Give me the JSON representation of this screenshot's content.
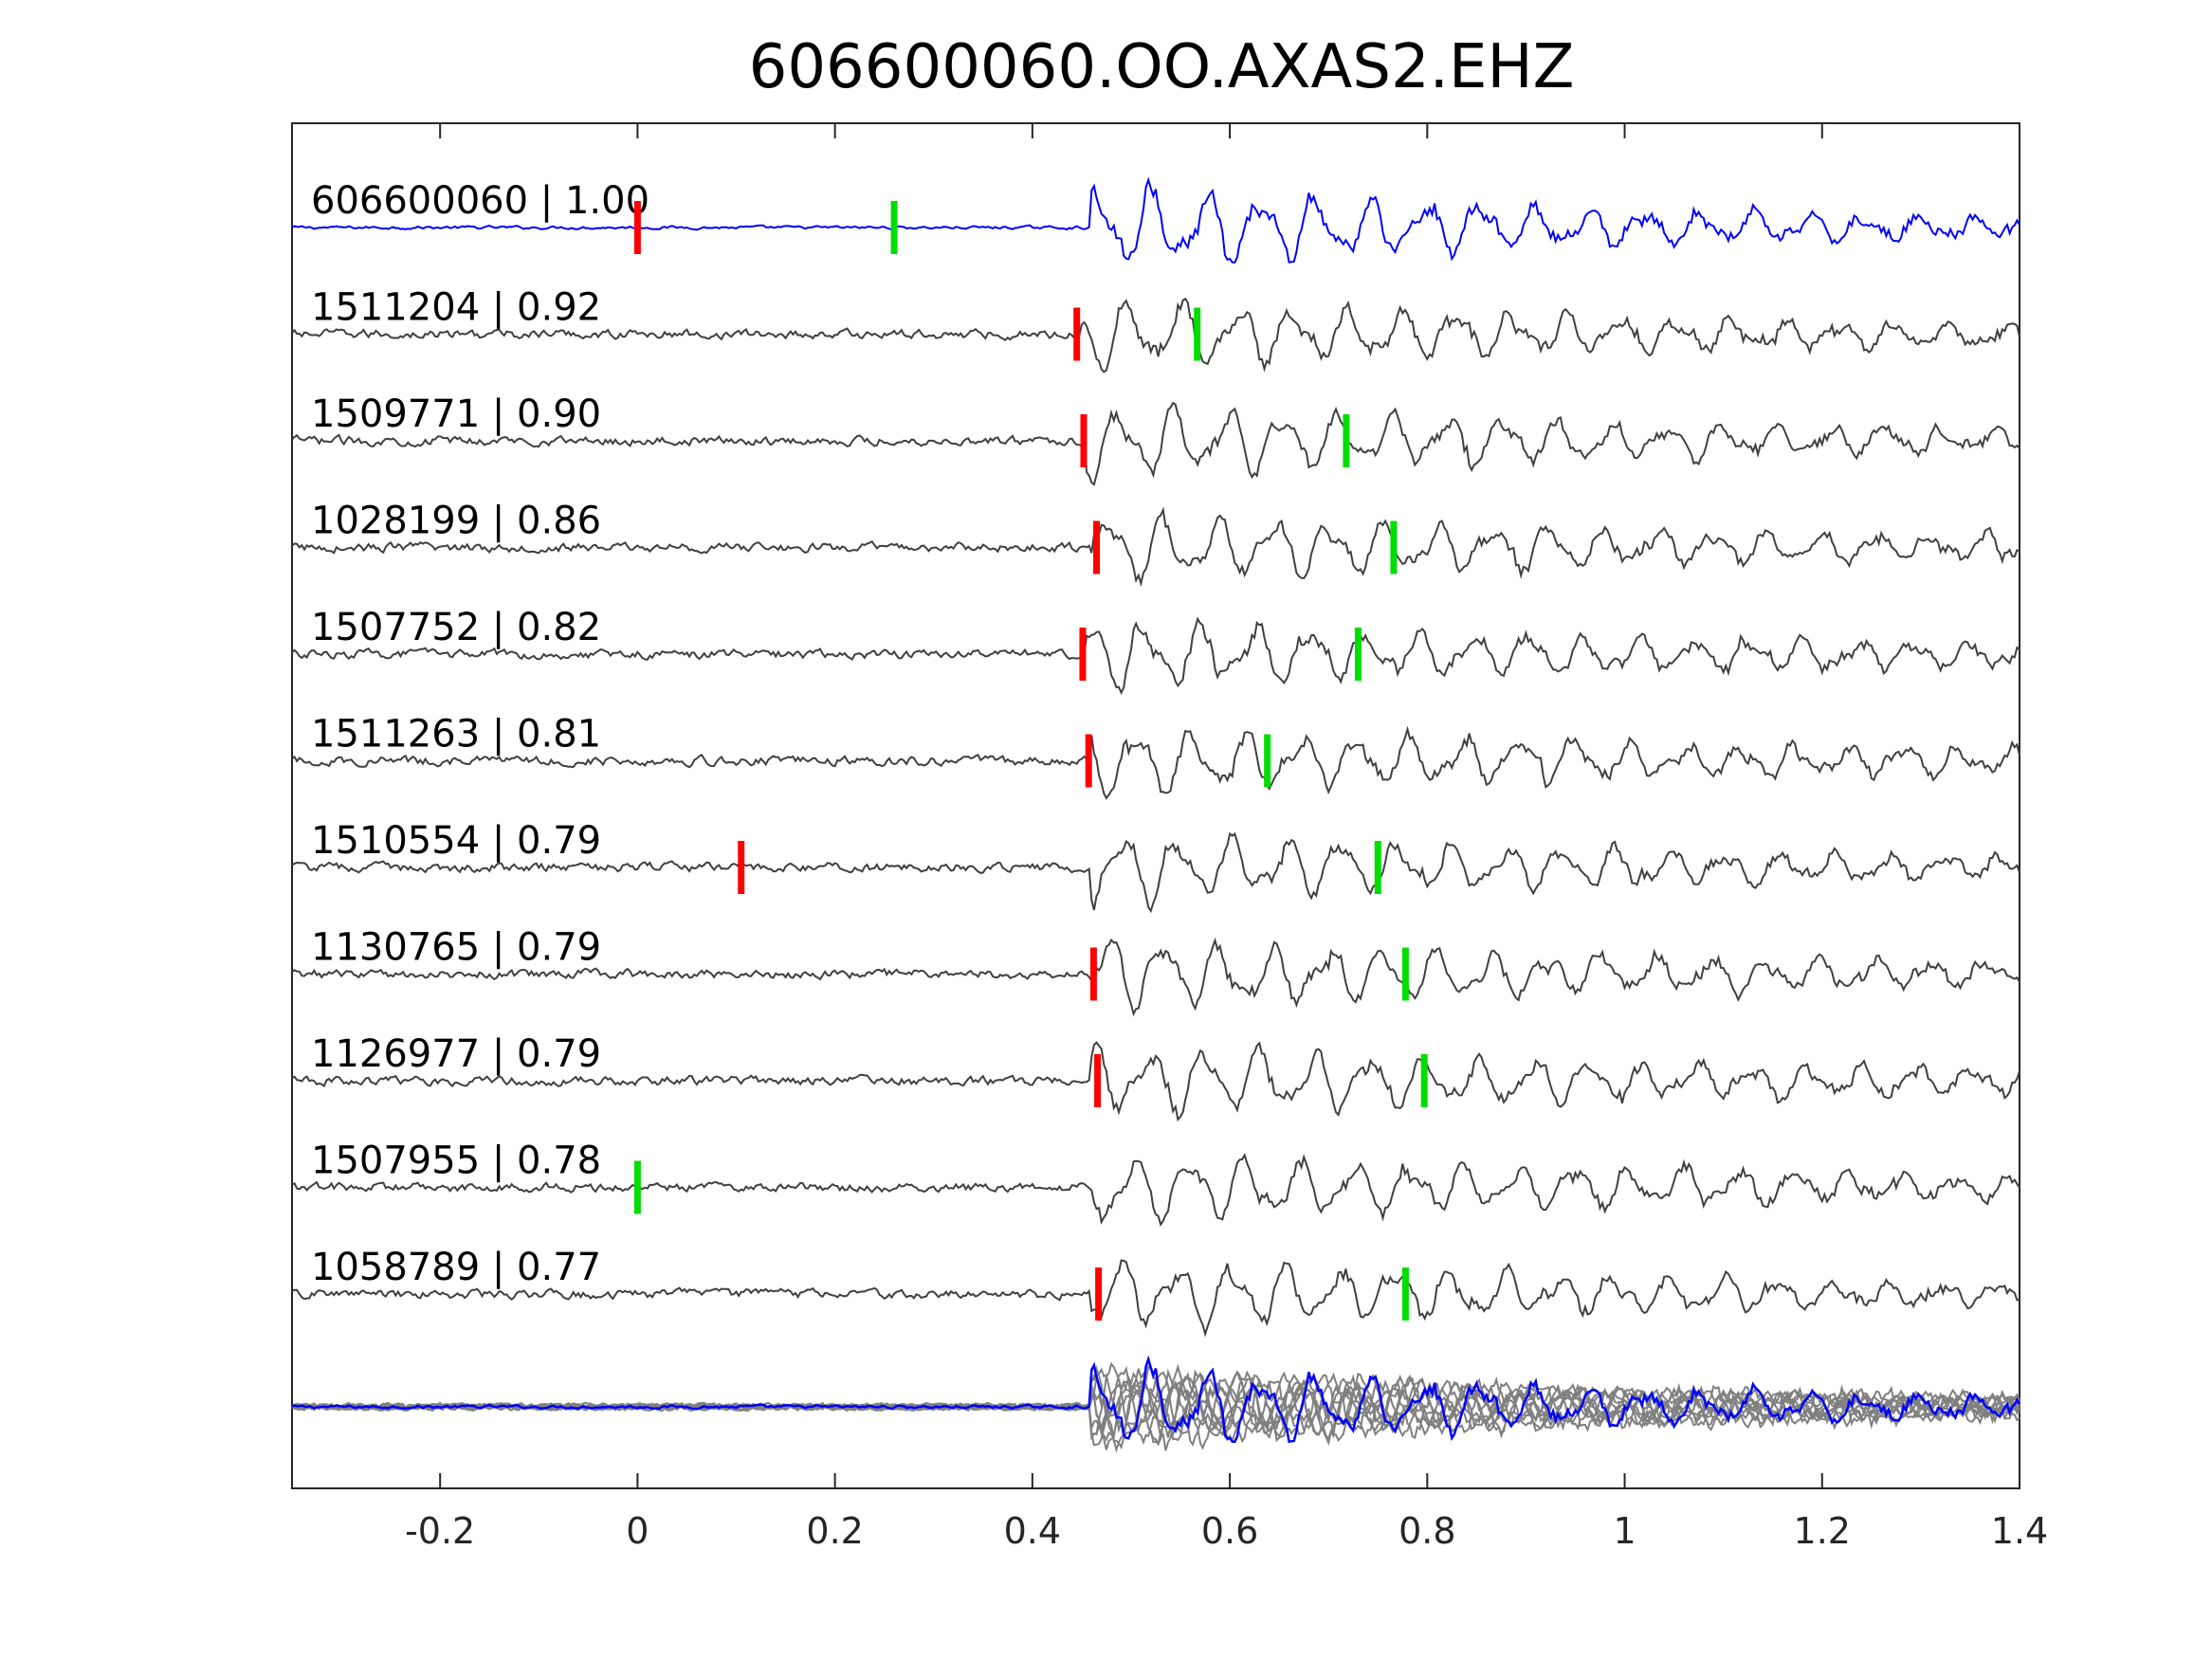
{
  "chart_data": {
    "type": "line",
    "title": "606600060.OO.AXAS2.EHZ",
    "xlabel": "",
    "ylabel": "",
    "xlim": [
      -0.35,
      1.4
    ],
    "x_ticks": [
      -0.2,
      0,
      0.2,
      0.4,
      0.6,
      0.8,
      1,
      1.2,
      1.4
    ],
    "x_tick_labels": [
      "-0.2",
      "0",
      "0.2",
      "0.4",
      "0.6",
      "0.8",
      "1",
      "1.2",
      "1.4"
    ],
    "grid": false,
    "legend": "none",
    "colors": {
      "template": "#0000ff",
      "match": "#404040",
      "overlay": "#808080",
      "p_pick": "#ff0000",
      "s_pick": "#00dd00",
      "axes": "#262626"
    },
    "series": [
      {
        "id": "606600060",
        "cc": "1.00",
        "label": "606600060 | 1.00",
        "role": "template",
        "onset": 0.46,
        "p_pick": 0.0,
        "s_pick": 0.26
      },
      {
        "id": "1511204",
        "cc": "0.92",
        "label": "1511204 | 0.92",
        "role": "match",
        "onset": 0.45,
        "p_pick": 0.445,
        "s_pick": 0.567
      },
      {
        "id": "1509771",
        "cc": "0.90",
        "label": "1509771 | 0.90",
        "role": "match",
        "onset": 0.455,
        "p_pick": 0.452,
        "s_pick": 0.718
      },
      {
        "id": "1028199",
        "cc": "0.86",
        "label": "1028199 | 0.86",
        "role": "match",
        "onset": 0.46,
        "p_pick": 0.465,
        "s_pick": 0.766
      },
      {
        "id": "1507752",
        "cc": "0.82",
        "label": "1507752 | 0.82",
        "role": "match",
        "onset": 0.455,
        "p_pick": 0.451,
        "s_pick": 0.73
      },
      {
        "id": "1511263",
        "cc": "0.81",
        "label": "1511263 | 0.81",
        "role": "match",
        "onset": 0.46,
        "p_pick": 0.457,
        "s_pick": 0.638
      },
      {
        "id": "1510554",
        "cc": "0.79",
        "label": "1510554 | 0.79",
        "role": "match",
        "onset": 0.46,
        "p_pick": 0.105,
        "s_pick": 0.75
      },
      {
        "id": "1130765",
        "cc": "0.79",
        "label": "1130765 | 0.79",
        "role": "match",
        "onset": 0.46,
        "p_pick": 0.462,
        "s_pick": 0.778
      },
      {
        "id": "1126977",
        "cc": "0.79",
        "label": "1126977 | 0.79",
        "role": "match",
        "onset": 0.46,
        "p_pick": 0.466,
        "s_pick": 0.797
      },
      {
        "id": "1507955",
        "cc": "0.78",
        "label": "1507955 | 0.78",
        "role": "match",
        "onset": 0.46,
        "p_pick": null,
        "s_pick": 0.0
      },
      {
        "id": "1058789",
        "cc": "0.77",
        "label": "1058789 | 0.77",
        "role": "match",
        "onset": 0.46,
        "p_pick": 0.467,
        "s_pick": 0.778
      }
    ],
    "overlay": {
      "role": "stack",
      "onset": 0.46
    }
  }
}
